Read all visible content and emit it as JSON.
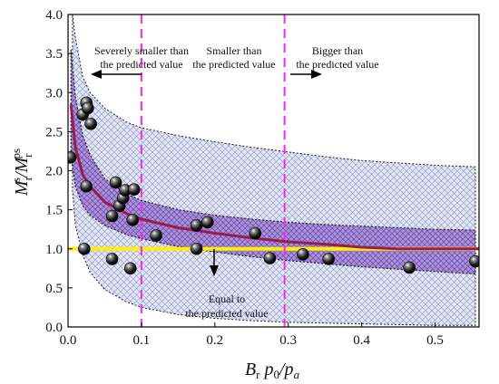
{
  "chart_data": {
    "type": "scatter",
    "xlabel": "B_r p_0/p_a",
    "ylabel": "M_r^s/M_r^ps",
    "xlim": [
      0,
      0.56
    ],
    "ylim": [
      0,
      4
    ],
    "x_ticks": [
      "0.0",
      "0.1",
      "0.2",
      "0.3",
      "0.4",
      "0.5"
    ],
    "y_ticks": [
      "0.0",
      "0.5",
      "1.0",
      "1.5",
      "2.0",
      "2.5",
      "3.0",
      "3.5",
      "4.0"
    ],
    "points": [
      {
        "x": 0.003,
        "y": 2.17
      },
      {
        "x": 0.02,
        "y": 2.72
      },
      {
        "x": 0.025,
        "y": 2.87
      },
      {
        "x": 0.027,
        "y": 2.8
      },
      {
        "x": 0.031,
        "y": 2.6
      },
      {
        "x": 0.025,
        "y": 1.8
      },
      {
        "x": 0.06,
        "y": 1.42
      },
      {
        "x": 0.065,
        "y": 1.85
      },
      {
        "x": 0.07,
        "y": 1.55
      },
      {
        "x": 0.075,
        "y": 1.65
      },
      {
        "x": 0.078,
        "y": 1.75
      },
      {
        "x": 0.088,
        "y": 1.37
      },
      {
        "x": 0.09,
        "y": 1.76
      },
      {
        "x": 0.022,
        "y": 1.0
      },
      {
        "x": 0.06,
        "y": 0.87
      },
      {
        "x": 0.085,
        "y": 0.75
      },
      {
        "x": 0.12,
        "y": 1.17
      },
      {
        "x": 0.175,
        "y": 1.3
      },
      {
        "x": 0.19,
        "y": 1.34
      },
      {
        "x": 0.175,
        "y": 1.0
      },
      {
        "x": 0.255,
        "y": 1.2
      },
      {
        "x": 0.275,
        "y": 0.88
      },
      {
        "x": 0.32,
        "y": 0.93
      },
      {
        "x": 0.355,
        "y": 0.87
      },
      {
        "x": 0.465,
        "y": 0.76
      },
      {
        "x": 0.555,
        "y": 0.84
      }
    ],
    "fit_curve": {
      "x": [
        0.004,
        0.01,
        0.02,
        0.03,
        0.05,
        0.08,
        0.1,
        0.15,
        0.2,
        0.25,
        0.3,
        0.35,
        0.4,
        0.45,
        0.5,
        0.56
      ],
      "y": [
        2.85,
        2.3,
        1.95,
        1.8,
        1.6,
        1.45,
        1.38,
        1.27,
        1.2,
        1.14,
        1.09,
        1.06,
        1.02,
        1.0,
        1.0,
        1.0
      ]
    },
    "inner_band": {
      "x": [
        0.004,
        0.01,
        0.02,
        0.03,
        0.05,
        0.08,
        0.1,
        0.15,
        0.2,
        0.25,
        0.3,
        0.35,
        0.4,
        0.45,
        0.5,
        0.555
      ],
      "upper": [
        3.55,
        2.95,
        2.45,
        2.2,
        1.9,
        1.7,
        1.62,
        1.5,
        1.43,
        1.38,
        1.34,
        1.31,
        1.29,
        1.27,
        1.25,
        1.24
      ],
      "lower": [
        2.2,
        1.8,
        1.55,
        1.43,
        1.3,
        1.18,
        1.13,
        1.03,
        0.96,
        0.9,
        0.85,
        0.81,
        0.77,
        0.74,
        0.71,
        0.68
      ]
    },
    "outer_band": {
      "x": [
        0.006,
        0.01,
        0.02,
        0.03,
        0.05,
        0.08,
        0.1,
        0.15,
        0.2,
        0.25,
        0.3,
        0.35,
        0.4,
        0.45,
        0.5,
        0.555
      ],
      "upper": [
        4.0,
        3.7,
        3.2,
        3.0,
        2.8,
        2.62,
        2.55,
        2.45,
        2.37,
        2.3,
        2.24,
        2.18,
        2.13,
        2.1,
        2.07,
        2.05
      ],
      "lower": [
        1.75,
        1.3,
        0.92,
        0.7,
        0.48,
        0.32,
        0.25,
        0.16,
        0.11,
        0.08,
        0.06,
        0.05,
        0.04,
        0.03,
        0.02,
        0.02
      ]
    },
    "reference_line_y": 1.0,
    "vertical_lines_x": [
      0.1,
      0.295
    ],
    "annotations": {
      "severe": [
        "Severely smaller than",
        "the predicted value"
      ],
      "smaller": [
        "Smaller than",
        "the predicted value"
      ],
      "bigger": [
        "Bigger than",
        "the predicted value"
      ],
      "equal": [
        "Equal to",
        "the predicted value"
      ]
    },
    "colors": {
      "points": "#1a1a1a",
      "fit_curve": "#9b1c4b",
      "inner_band": "#9b7fd4",
      "outer_band": "#dde0f2",
      "reference_line": "#ffee00",
      "vertical_lines": "#ff22ff"
    }
  }
}
